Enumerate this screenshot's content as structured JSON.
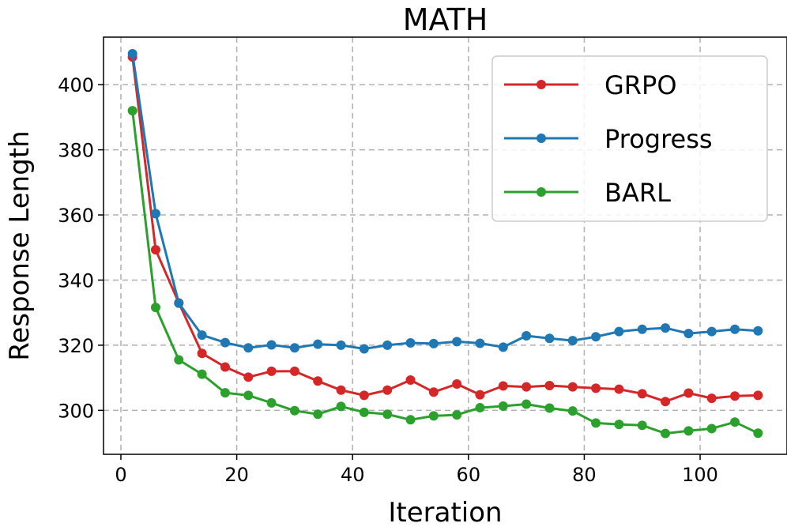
{
  "chart_data": {
    "type": "line",
    "title": "MATH",
    "xlabel": "Iteration",
    "ylabel": "Response Length",
    "xlim": [
      -3,
      115
    ],
    "ylim": [
      286.5,
      414.6
    ],
    "xticks": [
      0,
      20,
      40,
      60,
      80,
      100
    ],
    "yticks": [
      300,
      320,
      340,
      360,
      380,
      400
    ],
    "grid": true,
    "legend_position": "top-right",
    "x": [
      2,
      6,
      10,
      14,
      18,
      22,
      26,
      30,
      34,
      38,
      42,
      46,
      50,
      54,
      58,
      62,
      66,
      70,
      74,
      78,
      82,
      86,
      90,
      94,
      98,
      102,
      106,
      110
    ],
    "series": [
      {
        "name": "GRPO",
        "color": "#d62728",
        "values": [
          408.5,
          349.3,
          333.0,
          317.5,
          313.3,
          310.2,
          312.0,
          312.0,
          309.0,
          306.2,
          304.6,
          306.2,
          309.3,
          305.6,
          308.1,
          304.8,
          307.5,
          307.2,
          307.6,
          307.2,
          306.8,
          306.5,
          305.1,
          302.7,
          305.3,
          303.7,
          304.4,
          304.6
        ]
      },
      {
        "name": "Progress",
        "color": "#1f77b4",
        "values": [
          409.5,
          360.4,
          332.9,
          323.1,
          320.8,
          319.2,
          320.1,
          319.2,
          320.3,
          320.0,
          318.9,
          320.0,
          320.7,
          320.5,
          321.1,
          320.6,
          319.4,
          322.9,
          322.1,
          321.4,
          322.6,
          324.2,
          324.9,
          325.3,
          323.6,
          324.2,
          324.9,
          324.4
        ]
      },
      {
        "name": "BARL",
        "color": "#2ca02c",
        "values": [
          392.0,
          331.6,
          315.5,
          311.1,
          305.4,
          304.6,
          302.3,
          299.9,
          298.8,
          301.2,
          299.4,
          298.8,
          297.1,
          298.3,
          298.6,
          300.8,
          301.3,
          301.9,
          300.7,
          299.8,
          296.1,
          295.7,
          295.4,
          292.9,
          293.7,
          294.4,
          296.4,
          293.0
        ]
      }
    ]
  }
}
